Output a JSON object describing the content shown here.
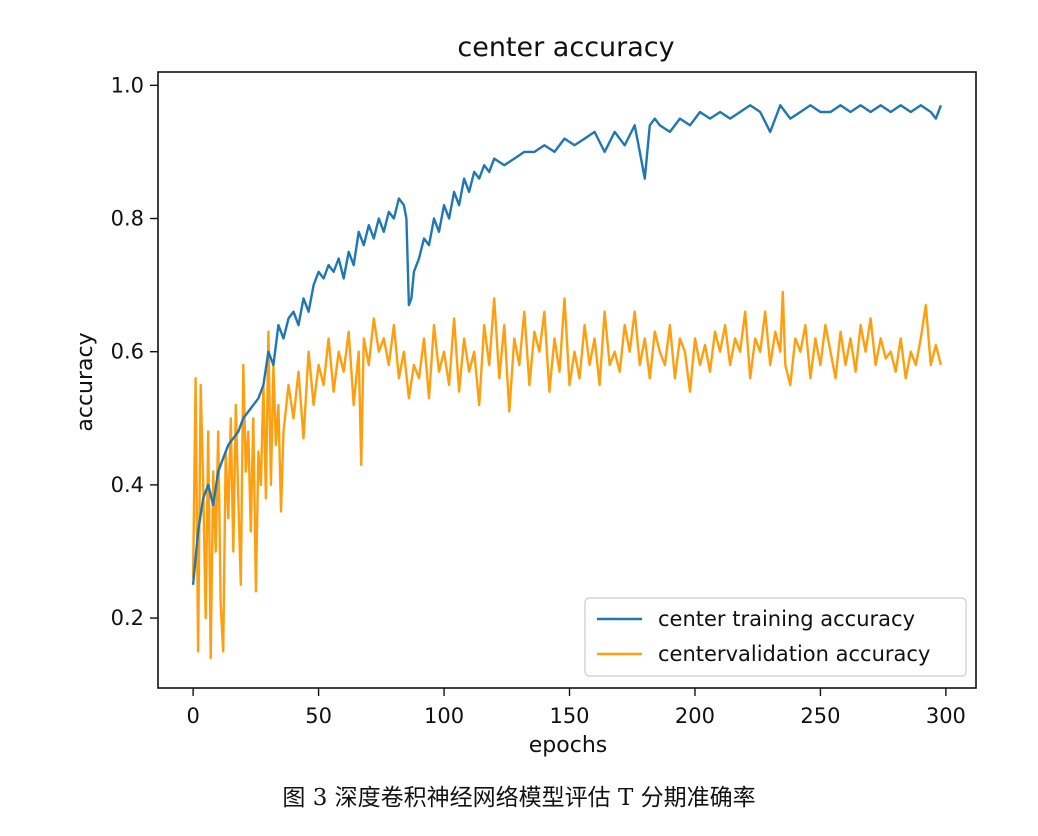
{
  "caption": "图 3    深度卷积神经网络模型评估 T 分期准确率",
  "chart_data": {
    "type": "line",
    "title": "center accuracy",
    "xlabel": "epochs",
    "ylabel": "accuracy",
    "xlim": [
      -14,
      312
    ],
    "ylim": [
      0.095,
      1.02
    ],
    "xticks": [
      0,
      50,
      100,
      150,
      200,
      250,
      300
    ],
    "yticks": [
      0.2,
      0.4,
      0.6,
      0.8,
      1.0
    ],
    "ytick_labels": [
      "0.2",
      "0.4",
      "0.6",
      "0.8",
      "1.0"
    ],
    "grid": false,
    "legend_position": "lower-right",
    "series": [
      {
        "name": "center training accuracy",
        "color": "#1f77b4",
        "x": [
          0,
          2,
          4,
          6,
          8,
          10,
          12,
          14,
          16,
          18,
          20,
          22,
          24,
          26,
          28,
          30,
          32,
          34,
          36,
          38,
          40,
          42,
          44,
          46,
          48,
          50,
          52,
          54,
          56,
          58,
          60,
          62,
          64,
          66,
          68,
          70,
          72,
          74,
          76,
          78,
          80,
          82,
          84,
          85,
          86,
          87,
          88,
          90,
          92,
          94,
          96,
          98,
          100,
          102,
          104,
          106,
          108,
          110,
          112,
          114,
          116,
          118,
          120,
          124,
          128,
          132,
          136,
          140,
          144,
          148,
          152,
          156,
          160,
          164,
          168,
          172,
          176,
          178,
          180,
          182,
          184,
          186,
          190,
          194,
          198,
          202,
          206,
          210,
          214,
          218,
          222,
          226,
          230,
          234,
          236,
          238,
          242,
          246,
          250,
          254,
          258,
          262,
          266,
          270,
          274,
          278,
          282,
          286,
          290,
          294,
          296,
          298
        ],
        "values": [
          0.25,
          0.33,
          0.38,
          0.4,
          0.37,
          0.42,
          0.44,
          0.46,
          0.47,
          0.48,
          0.5,
          0.51,
          0.52,
          0.53,
          0.55,
          0.6,
          0.58,
          0.64,
          0.62,
          0.65,
          0.66,
          0.64,
          0.68,
          0.66,
          0.7,
          0.72,
          0.71,
          0.73,
          0.72,
          0.74,
          0.71,
          0.75,
          0.73,
          0.78,
          0.76,
          0.79,
          0.77,
          0.8,
          0.78,
          0.81,
          0.8,
          0.83,
          0.82,
          0.8,
          0.67,
          0.68,
          0.72,
          0.74,
          0.77,
          0.76,
          0.8,
          0.78,
          0.82,
          0.8,
          0.84,
          0.82,
          0.86,
          0.84,
          0.87,
          0.86,
          0.88,
          0.87,
          0.89,
          0.88,
          0.89,
          0.9,
          0.9,
          0.91,
          0.9,
          0.92,
          0.91,
          0.92,
          0.93,
          0.9,
          0.93,
          0.91,
          0.94,
          0.9,
          0.86,
          0.94,
          0.95,
          0.94,
          0.93,
          0.95,
          0.94,
          0.96,
          0.95,
          0.96,
          0.95,
          0.96,
          0.97,
          0.96,
          0.93,
          0.97,
          0.96,
          0.95,
          0.96,
          0.97,
          0.96,
          0.96,
          0.97,
          0.96,
          0.97,
          0.96,
          0.97,
          0.96,
          0.97,
          0.96,
          0.97,
          0.96,
          0.95,
          0.97
        ]
      },
      {
        "name": "centervalidation accuracy",
        "color": "#ff9f0f",
        "x": [
          0,
          1,
          2,
          3,
          4,
          5,
          6,
          7,
          8,
          9,
          10,
          11,
          12,
          13,
          14,
          15,
          16,
          17,
          18,
          19,
          20,
          21,
          22,
          23,
          24,
          25,
          26,
          27,
          28,
          29,
          30,
          31,
          32,
          33,
          34,
          35,
          36,
          38,
          40,
          42,
          44,
          46,
          48,
          50,
          52,
          54,
          56,
          58,
          60,
          62,
          64,
          66,
          67,
          68,
          70,
          72,
          74,
          76,
          78,
          80,
          82,
          84,
          86,
          88,
          90,
          92,
          94,
          96,
          98,
          100,
          102,
          104,
          106,
          108,
          110,
          112,
          114,
          116,
          118,
          120,
          122,
          124,
          126,
          128,
          130,
          132,
          134,
          136,
          138,
          140,
          142,
          144,
          146,
          148,
          150,
          152,
          154,
          156,
          158,
          160,
          162,
          164,
          166,
          168,
          170,
          172,
          174,
          176,
          178,
          180,
          182,
          184,
          186,
          188,
          190,
          192,
          194,
          196,
          198,
          200,
          202,
          204,
          206,
          208,
          210,
          212,
          214,
          216,
          218,
          220,
          222,
          224,
          226,
          228,
          230,
          232,
          234,
          235,
          236,
          238,
          240,
          242,
          244,
          246,
          248,
          250,
          252,
          254,
          256,
          258,
          260,
          262,
          264,
          266,
          268,
          270,
          272,
          274,
          276,
          278,
          280,
          282,
          284,
          286,
          288,
          290,
          292,
          294,
          296,
          298
        ],
        "values": [
          0.26,
          0.56,
          0.15,
          0.55,
          0.4,
          0.2,
          0.48,
          0.14,
          0.42,
          0.3,
          0.48,
          0.22,
          0.15,
          0.45,
          0.35,
          0.5,
          0.3,
          0.52,
          0.38,
          0.25,
          0.58,
          0.42,
          0.48,
          0.33,
          0.5,
          0.24,
          0.45,
          0.4,
          0.55,
          0.38,
          0.63,
          0.4,
          0.58,
          0.46,
          0.52,
          0.36,
          0.48,
          0.55,
          0.5,
          0.57,
          0.47,
          0.6,
          0.52,
          0.58,
          0.55,
          0.62,
          0.54,
          0.6,
          0.57,
          0.63,
          0.52,
          0.6,
          0.43,
          0.62,
          0.58,
          0.65,
          0.6,
          0.62,
          0.58,
          0.64,
          0.56,
          0.6,
          0.53,
          0.58,
          0.56,
          0.62,
          0.53,
          0.64,
          0.57,
          0.6,
          0.55,
          0.65,
          0.54,
          0.62,
          0.57,
          0.6,
          0.52,
          0.64,
          0.58,
          0.68,
          0.56,
          0.64,
          0.51,
          0.62,
          0.58,
          0.66,
          0.55,
          0.63,
          0.6,
          0.66,
          0.54,
          0.62,
          0.57,
          0.68,
          0.55,
          0.6,
          0.56,
          0.64,
          0.58,
          0.62,
          0.55,
          0.66,
          0.58,
          0.6,
          0.57,
          0.64,
          0.6,
          0.66,
          0.58,
          0.62,
          0.56,
          0.63,
          0.6,
          0.58,
          0.64,
          0.56,
          0.62,
          0.6,
          0.54,
          0.62,
          0.58,
          0.61,
          0.57,
          0.63,
          0.6,
          0.64,
          0.58,
          0.62,
          0.6,
          0.66,
          0.56,
          0.62,
          0.6,
          0.66,
          0.58,
          0.63,
          0.6,
          0.69,
          0.58,
          0.55,
          0.62,
          0.6,
          0.64,
          0.56,
          0.62,
          0.58,
          0.64,
          0.6,
          0.56,
          0.63,
          0.58,
          0.62,
          0.57,
          0.64,
          0.6,
          0.65,
          0.58,
          0.62,
          0.59,
          0.6,
          0.57,
          0.62,
          0.56,
          0.6,
          0.58,
          0.62,
          0.67,
          0.58,
          0.61,
          0.58
        ]
      }
    ]
  }
}
